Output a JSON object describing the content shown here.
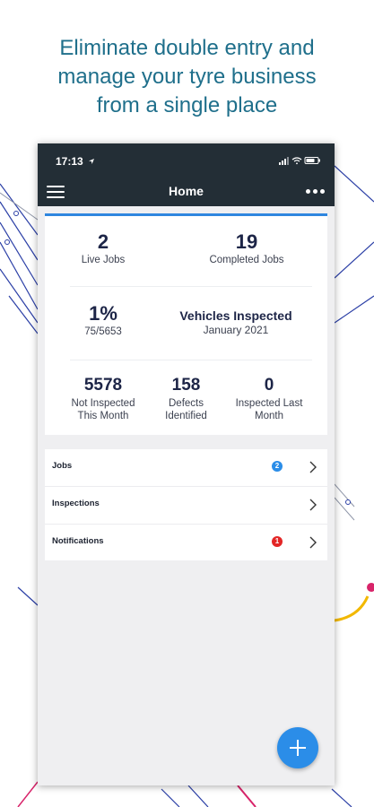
{
  "headline": {
    "line1": "Eliminate double entry and",
    "line2": "manage your tyre business",
    "line3": "from a single place"
  },
  "status_bar": {
    "time": "17:13"
  },
  "navbar": {
    "title": "Home"
  },
  "stats": {
    "live_jobs": {
      "value": "2",
      "label": "Live Jobs"
    },
    "completed_jobs": {
      "value": "19",
      "label": "Completed Jobs"
    },
    "inspected_percent": {
      "value": "1%",
      "sub": "75/5653"
    },
    "vehicles_inspected": {
      "title": "Vehicles Inspected",
      "period": "January 2021"
    },
    "not_inspected": {
      "value": "5578",
      "label_line1": "Not Inspected",
      "label_line2": "This Month"
    },
    "defects": {
      "value": "158",
      "label_line1": "Defects",
      "label_line2": "Identified"
    },
    "inspected_last_month": {
      "value": "0",
      "label_line1": "Inspected Last",
      "label_line2": "Month"
    }
  },
  "menu": {
    "items": [
      {
        "label": "Jobs",
        "badge": "2",
        "badge_color": "#2b8de8"
      },
      {
        "label": "Inspections"
      },
      {
        "label": "Notifications",
        "badge": "1",
        "badge_color": "#e32626"
      }
    ]
  },
  "colors": {
    "header": "#232e36",
    "headline": "#1f6f8b",
    "accent": "#2f86df",
    "fab": "#2b8de8"
  },
  "icons": {
    "menu": "hamburger-icon",
    "more": "more-icon",
    "fab": "plus-icon",
    "chevron": "chevron-right-icon"
  }
}
